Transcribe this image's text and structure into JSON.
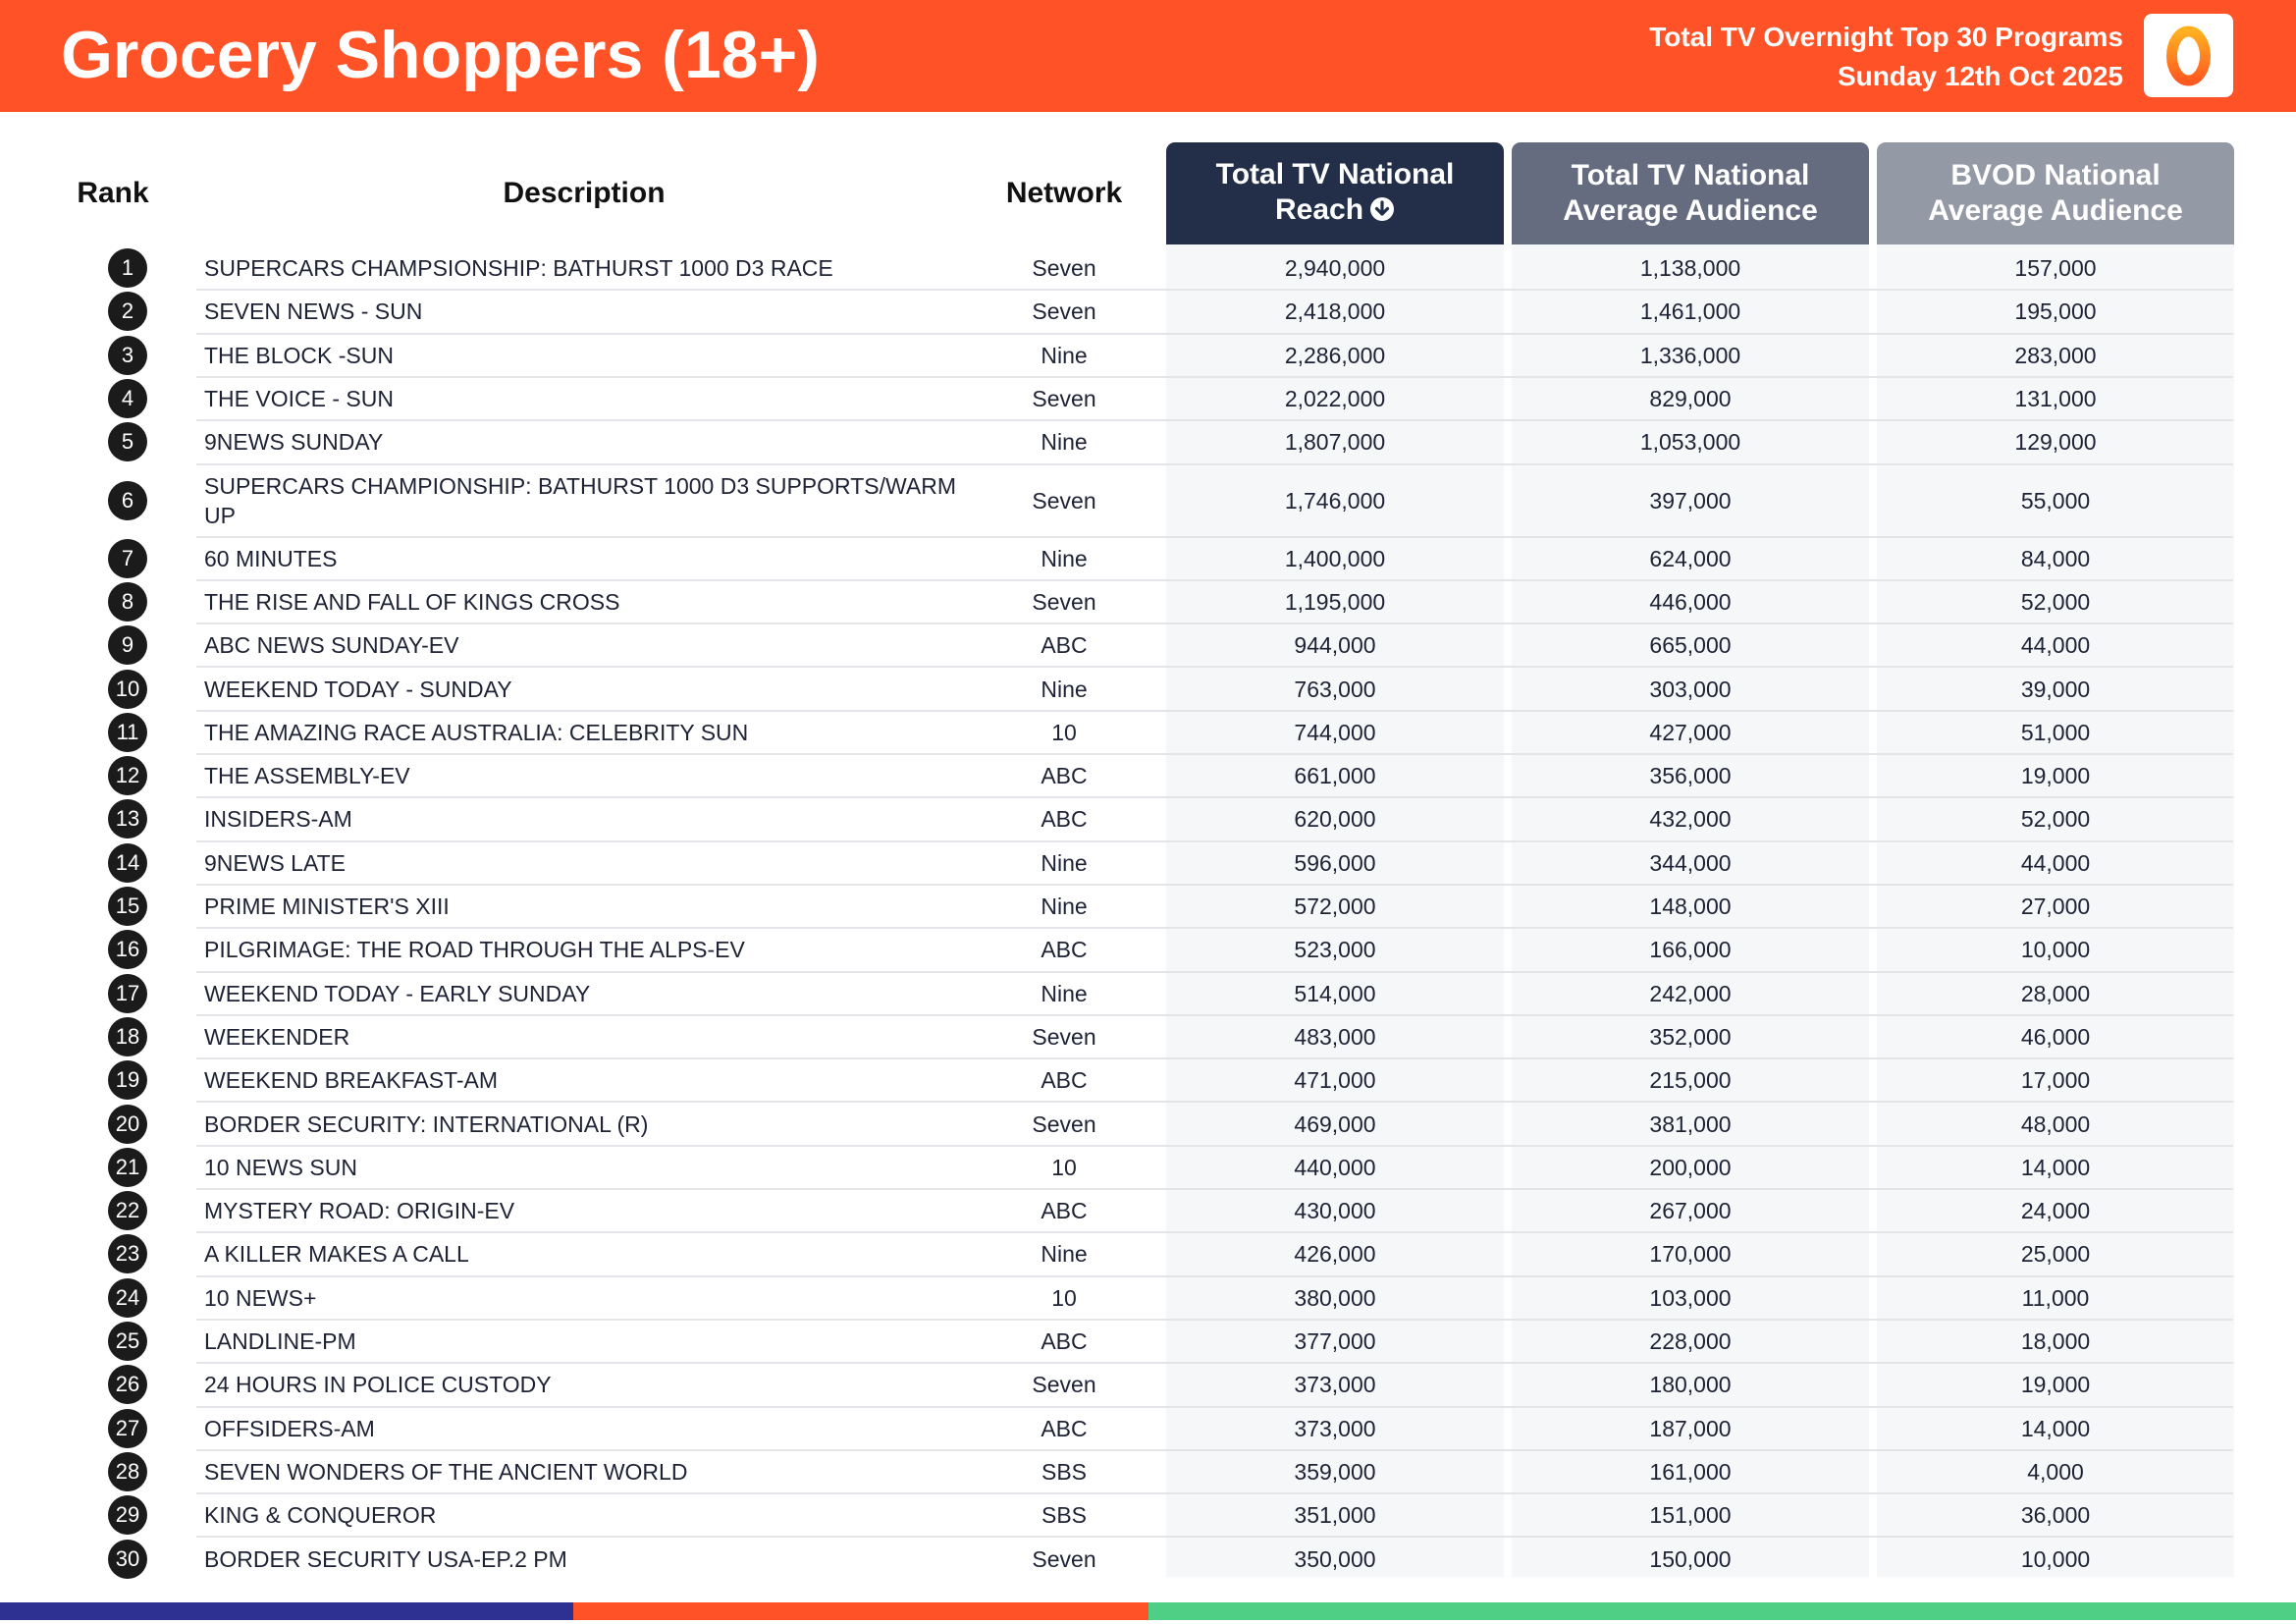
{
  "header": {
    "title": "Grocery Shoppers (18+)",
    "subtitle_line1": "Total TV Overnight Top 30 Programs",
    "subtitle_line2": "Sunday 12th Oct 2025",
    "logo_icon": "oztam-logo-icon"
  },
  "colors": {
    "header_bg": "#ff5226",
    "reach_header": "#232e48",
    "avg_header": "#656c80",
    "bvod_header": "#9499a6",
    "footer": [
      "#2e3192",
      "#ff5226",
      "#4fcf85"
    ]
  },
  "table": {
    "columns": {
      "rank": "Rank",
      "description": "Description",
      "network": "Network",
      "reach_line1": "Total TV National",
      "reach_line2": "Reach",
      "avg_line1": "Total TV National",
      "avg_line2": "Average Audience",
      "bvod_line1": "BVOD National",
      "bvod_line2": "Average Audience"
    },
    "sort_icon": "arrow-down-circle-icon",
    "rows": [
      {
        "rank": "1",
        "description": "SUPERCARS CHAMPSIONSHIP: BATHURST 1000 D3 RACE",
        "network": "Seven",
        "reach": "2,940,000",
        "avg": "1,138,000",
        "bvod": "157,000"
      },
      {
        "rank": "2",
        "description": "SEVEN NEWS - SUN",
        "network": "Seven",
        "reach": "2,418,000",
        "avg": "1,461,000",
        "bvod": "195,000"
      },
      {
        "rank": "3",
        "description": "THE BLOCK -SUN",
        "network": "Nine",
        "reach": "2,286,000",
        "avg": "1,336,000",
        "bvod": "283,000"
      },
      {
        "rank": "4",
        "description": "THE VOICE - SUN",
        "network": "Seven",
        "reach": "2,022,000",
        "avg": "829,000",
        "bvod": "131,000"
      },
      {
        "rank": "5",
        "description": "9NEWS SUNDAY",
        "network": "Nine",
        "reach": "1,807,000",
        "avg": "1,053,000",
        "bvod": "129,000"
      },
      {
        "rank": "6",
        "description": "SUPERCARS CHAMPIONSHIP: BATHURST 1000 D3 SUPPORTS/WARM UP",
        "network": "Seven",
        "reach": "1,746,000",
        "avg": "397,000",
        "bvod": "55,000"
      },
      {
        "rank": "7",
        "description": "60 MINUTES",
        "network": "Nine",
        "reach": "1,400,000",
        "avg": "624,000",
        "bvod": "84,000"
      },
      {
        "rank": "8",
        "description": "THE RISE AND FALL OF KINGS CROSS",
        "network": "Seven",
        "reach": "1,195,000",
        "avg": "446,000",
        "bvod": "52,000"
      },
      {
        "rank": "9",
        "description": "ABC NEWS SUNDAY-EV",
        "network": "ABC",
        "reach": "944,000",
        "avg": "665,000",
        "bvod": "44,000"
      },
      {
        "rank": "10",
        "description": "WEEKEND TODAY - SUNDAY",
        "network": "Nine",
        "reach": "763,000",
        "avg": "303,000",
        "bvod": "39,000"
      },
      {
        "rank": "11",
        "description": "THE AMAZING RACE AUSTRALIA: CELEBRITY SUN",
        "network": "10",
        "reach": "744,000",
        "avg": "427,000",
        "bvod": "51,000"
      },
      {
        "rank": "12",
        "description": "THE ASSEMBLY-EV",
        "network": "ABC",
        "reach": "661,000",
        "avg": "356,000",
        "bvod": "19,000"
      },
      {
        "rank": "13",
        "description": "INSIDERS-AM",
        "network": "ABC",
        "reach": "620,000",
        "avg": "432,000",
        "bvod": "52,000"
      },
      {
        "rank": "14",
        "description": "9NEWS LATE",
        "network": "Nine",
        "reach": "596,000",
        "avg": "344,000",
        "bvod": "44,000"
      },
      {
        "rank": "15",
        "description": "PRIME MINISTER'S XIII",
        "network": "Nine",
        "reach": "572,000",
        "avg": "148,000",
        "bvod": "27,000"
      },
      {
        "rank": "16",
        "description": "PILGRIMAGE: THE ROAD THROUGH THE ALPS-EV",
        "network": "ABC",
        "reach": "523,000",
        "avg": "166,000",
        "bvod": "10,000"
      },
      {
        "rank": "17",
        "description": "WEEKEND TODAY - EARLY SUNDAY",
        "network": "Nine",
        "reach": "514,000",
        "avg": "242,000",
        "bvod": "28,000"
      },
      {
        "rank": "18",
        "description": "WEEKENDER",
        "network": "Seven",
        "reach": "483,000",
        "avg": "352,000",
        "bvod": "46,000"
      },
      {
        "rank": "19",
        "description": "WEEKEND BREAKFAST-AM",
        "network": "ABC",
        "reach": "471,000",
        "avg": "215,000",
        "bvod": "17,000"
      },
      {
        "rank": "20",
        "description": "BORDER SECURITY: INTERNATIONAL (R)",
        "network": "Seven",
        "reach": "469,000",
        "avg": "381,000",
        "bvod": "48,000"
      },
      {
        "rank": "21",
        "description": "10 NEWS SUN",
        "network": "10",
        "reach": "440,000",
        "avg": "200,000",
        "bvod": "14,000"
      },
      {
        "rank": "22",
        "description": "MYSTERY ROAD: ORIGIN-EV",
        "network": "ABC",
        "reach": "430,000",
        "avg": "267,000",
        "bvod": "24,000"
      },
      {
        "rank": "23",
        "description": "A KILLER MAKES A CALL",
        "network": "Nine",
        "reach": "426,000",
        "avg": "170,000",
        "bvod": "25,000"
      },
      {
        "rank": "24",
        "description": "10 NEWS+",
        "network": "10",
        "reach": "380,000",
        "avg": "103,000",
        "bvod": "11,000"
      },
      {
        "rank": "25",
        "description": "LANDLINE-PM",
        "network": "ABC",
        "reach": "377,000",
        "avg": "228,000",
        "bvod": "18,000"
      },
      {
        "rank": "26",
        "description": "24 HOURS IN POLICE CUSTODY",
        "network": "Seven",
        "reach": "373,000",
        "avg": "180,000",
        "bvod": "19,000"
      },
      {
        "rank": "27",
        "description": "OFFSIDERS-AM",
        "network": "ABC",
        "reach": "373,000",
        "avg": "187,000",
        "bvod": "14,000"
      },
      {
        "rank": "28",
        "description": "SEVEN WONDERS OF THE ANCIENT WORLD",
        "network": "SBS",
        "reach": "359,000",
        "avg": "161,000",
        "bvod": "4,000"
      },
      {
        "rank": "29",
        "description": "KING & CONQUEROR",
        "network": "SBS",
        "reach": "351,000",
        "avg": "151,000",
        "bvod": "36,000"
      },
      {
        "rank": "30",
        "description": "BORDER SECURITY USA-EP.2 PM",
        "network": "Seven",
        "reach": "350,000",
        "avg": "150,000",
        "bvod": "10,000"
      }
    ]
  }
}
